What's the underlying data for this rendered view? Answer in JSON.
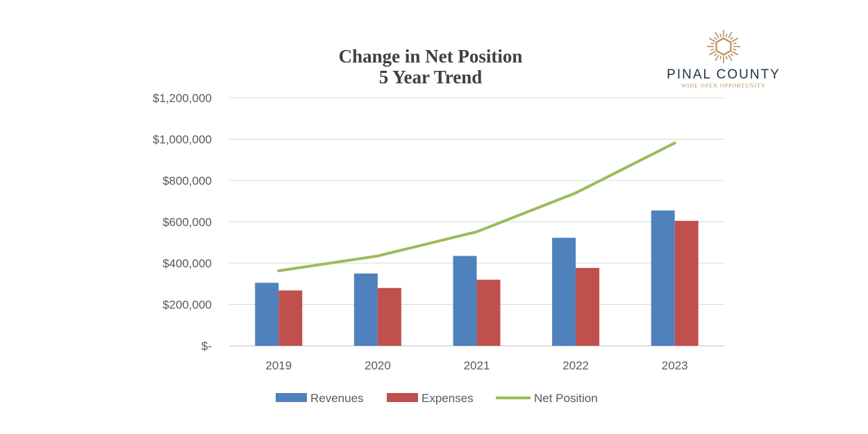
{
  "chart_data": {
    "type": "bar",
    "title": [
      "Change in Net Position",
      "5 Year Trend"
    ],
    "categories": [
      "2019",
      "2020",
      "2021",
      "2022",
      "2023"
    ],
    "series": [
      {
        "name": "Revenues",
        "kind": "bar",
        "color": "#4f81bd",
        "values": [
          305000,
          350000,
          435000,
          523000,
          655000
        ]
      },
      {
        "name": "Expenses",
        "kind": "bar",
        "color": "#c0504d",
        "values": [
          268000,
          280000,
          320000,
          377000,
          605000
        ]
      },
      {
        "name": "Net Position",
        "kind": "line",
        "color": "#9bbb59",
        "values": [
          363000,
          435000,
          552000,
          740000,
          982000
        ]
      }
    ],
    "y_ticks": [
      0,
      200000,
      400000,
      600000,
      800000,
      1000000,
      1200000
    ],
    "y_tick_labels": [
      "$-",
      "$200,000",
      "$400,000",
      "$600,000",
      "$800,000",
      "$1,000,000",
      "$1,200,000"
    ],
    "ylim": [
      0,
      1200000
    ],
    "grid": true,
    "legend": "bottom"
  },
  "logo": {
    "name": "PINAL COUNTY",
    "tagline": "WIDE OPEN OPPORTUNITY",
    "color": "#b8905a"
  }
}
